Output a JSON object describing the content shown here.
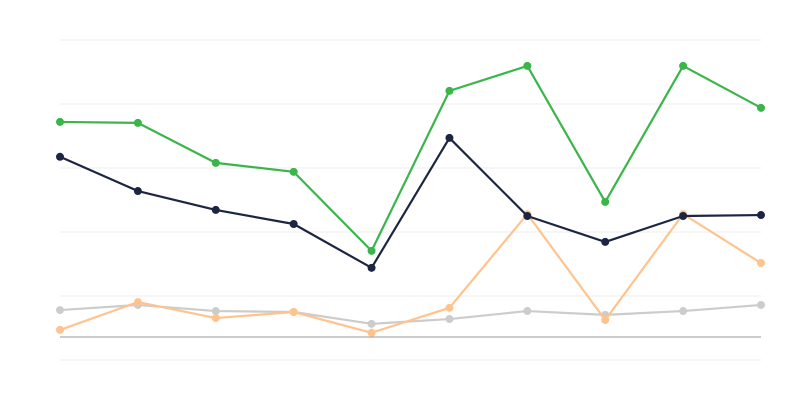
{
  "chart_data": {
    "type": "line",
    "title": "",
    "xlabel": "",
    "ylabel": "",
    "x": [
      1,
      2,
      3,
      4,
      5,
      6,
      7,
      8,
      9,
      10
    ],
    "ylim": [
      -7.2,
      92.8
    ],
    "gridlines": [
      -7.2,
      12.8,
      32.8,
      52.8,
      72.8,
      92.8
    ],
    "baseline": 0,
    "grid": true,
    "legend": "none",
    "series": [
      {
        "color": "#cccccc",
        "values": [
          8.4,
          10.0,
          8.1,
          7.8,
          4.1,
          5.6,
          8.1,
          6.9,
          8.1,
          10.0
        ]
      },
      {
        "color": "#ffc38e",
        "values": [
          2.2,
          10.9,
          5.9,
          7.8,
          1.3,
          9.1,
          38.4,
          5.3,
          38.4,
          23.1
        ]
      },
      {
        "color": "#1c2541",
        "values": [
          56.3,
          45.6,
          39.7,
          35.3,
          21.6,
          62.2,
          37.8,
          29.7,
          37.8,
          38.1
        ]
      },
      {
        "color": "#3ab54a",
        "values": [
          67.2,
          66.9,
          54.4,
          51.6,
          26.9,
          76.9,
          84.7,
          42.2,
          84.7,
          71.6
        ]
      }
    ]
  }
}
